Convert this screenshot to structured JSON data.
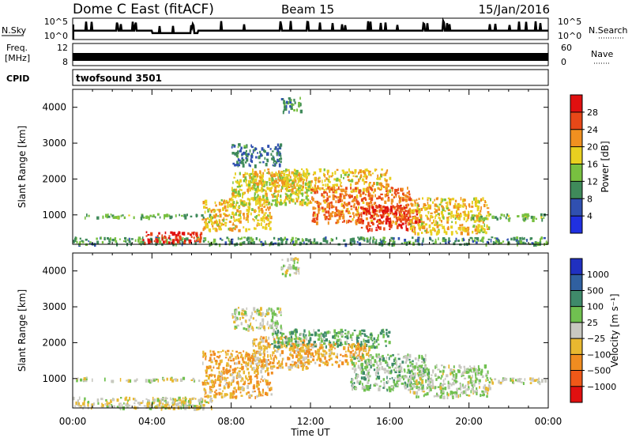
{
  "title": {
    "station": "Dome C East (fitACF)",
    "beam": "Beam 15",
    "date": "15/Jan/2016"
  },
  "header_panels": {
    "nsky_label": "N.Sky",
    "nsky_ticks": [
      "10^5",
      "10^0"
    ],
    "nsearch_label": "N.Search",
    "nsearch_ticks": [
      "10^5",
      "10^0"
    ],
    "freq_label": "Freq.",
    "freq_unit": "[MHz]",
    "freq_ticks": [
      "12",
      "8"
    ],
    "nave_label": "Nave",
    "nave_ticks": [
      "60",
      "0"
    ],
    "cpid_label": "CPID",
    "cpid_value": "twofsound 3501"
  },
  "axes": {
    "xlabel": "Time UT",
    "x_ticks": [
      "00:00",
      "04:00",
      "08:00",
      "12:00",
      "16:00",
      "20:00",
      "00:00"
    ],
    "ylabel": "Slant Range [km]",
    "y_ticks": [
      "1000",
      "2000",
      "3000",
      "4000"
    ]
  },
  "colorbars": {
    "power": {
      "label": "Power [dB]",
      "ticks": [
        "28",
        "24",
        "20",
        "16",
        "12",
        "8",
        "4"
      ],
      "colors": [
        "#2030e0",
        "#3050b0",
        "#3f8a5a",
        "#78c040",
        "#e8d020",
        "#f09020",
        "#e84818",
        "#e01010"
      ]
    },
    "velocity": {
      "label": "Velocity [m s⁻¹]",
      "ticks": [
        "1000",
        "500",
        "100",
        "25",
        "−25",
        "−100",
        "−500",
        "−1000"
      ],
      "colors": [
        "#2030c0",
        "#3060a0",
        "#3f8a6a",
        "#70c050",
        "#c8c8c0",
        "#e8b830",
        "#f08c20",
        "#f05818",
        "#e01010"
      ]
    }
  },
  "chart_data": [
    {
      "type": "line",
      "title": "N.Sky / N.Search",
      "x_range": [
        "00:00",
        "24:00"
      ],
      "ylim": [
        "10^0",
        "10^5"
      ],
      "y_scale": "log",
      "series": [
        {
          "name": "N.Sky",
          "x": [
            0,
            2,
            4,
            5,
            6,
            8,
            10,
            12,
            14,
            16,
            18,
            20,
            22,
            24
          ],
          "values": [
            0.45,
            0.4,
            0.3,
            0.28,
            0.4,
            0.45,
            0.45,
            0.45,
            0.45,
            0.45,
            0.45,
            0.45,
            0.45,
            0.45
          ]
        },
        {
          "name": "N.Search",
          "x": [
            0,
            12,
            24
          ],
          "values": [
            0.4,
            0.4,
            0.4
          ]
        }
      ]
    },
    {
      "type": "line",
      "title": "Freq. / Nave",
      "x_range": [
        "00:00",
        "24:00"
      ],
      "series": [
        {
          "name": "Freq.",
          "x": [
            0,
            24
          ],
          "values": [
            10.5,
            10.5
          ]
        },
        {
          "name": "Nave",
          "x": [
            0,
            24
          ],
          "values": [
            18,
            18
          ]
        }
      ],
      "ylim_freq": [
        8,
        12
      ],
      "ylim_nave": [
        0,
        60
      ]
    },
    {
      "type": "heatmap",
      "title": "Power [dB]",
      "xlabel": "Time UT",
      "ylabel": "Slant Range [km]",
      "xlim": [
        0,
        24
      ],
      "ylim": [
        180,
        4500
      ],
      "zlim": [
        0,
        30
      ],
      "regions": [
        {
          "t": [
            0,
            7
          ],
          "r": [
            950,
            1050
          ],
          "value": 12
        },
        {
          "t": [
            0,
            24
          ],
          "r": [
            200,
            400
          ],
          "value": 10
        },
        {
          "t": [
            3.5,
            6.5
          ],
          "r": [
            250,
            550
          ],
          "value": 26
        },
        {
          "t": [
            6.5,
            10
          ],
          "r": [
            600,
            1500
          ],
          "value": 18
        },
        {
          "t": [
            8,
            12
          ],
          "r": [
            1300,
            2200
          ],
          "value": 16
        },
        {
          "t": [
            9,
            16
          ],
          "r": [
            1700,
            2300
          ],
          "value": 18
        },
        {
          "t": [
            12,
            17
          ],
          "r": [
            800,
            1800
          ],
          "value": 22
        },
        {
          "t": [
            14.5,
            17.5
          ],
          "r": [
            600,
            1300
          ],
          "value": 26
        },
        {
          "t": [
            17,
            21
          ],
          "r": [
            500,
            1500
          ],
          "value": 18
        },
        {
          "t": [
            20,
            24
          ],
          "r": [
            900,
            1050
          ],
          "value": 12
        },
        {
          "t": [
            10.5,
            11.5
          ],
          "r": [
            3900,
            4300
          ],
          "value": 10
        },
        {
          "t": [
            8,
            10.5
          ],
          "r": [
            2400,
            3000
          ],
          "value": 8
        }
      ]
    },
    {
      "type": "heatmap",
      "title": "Velocity [m s⁻¹]",
      "xlabel": "Time UT",
      "ylabel": "Slant Range [km]",
      "xlim": [
        0,
        24
      ],
      "ylim": [
        180,
        4500
      ],
      "zlim": [
        -1000,
        1000
      ],
      "regions": [
        {
          "t": [
            0,
            7
          ],
          "r": [
            950,
            1050
          ],
          "value": 0
        },
        {
          "t": [
            0,
            7
          ],
          "r": [
            200,
            500
          ],
          "value": -50
        },
        {
          "t": [
            3.5,
            6.5
          ],
          "r": [
            200,
            500
          ],
          "value": 0
        },
        {
          "t": [
            6.5,
            10
          ],
          "r": [
            500,
            1800
          ],
          "value": -300
        },
        {
          "t": [
            9,
            12
          ],
          "r": [
            1300,
            2200
          ],
          "value": -200
        },
        {
          "t": [
            10,
            16
          ],
          "r": [
            1900,
            2400
          ],
          "value": 300
        },
        {
          "t": [
            11,
            15
          ],
          "r": [
            1400,
            2000
          ],
          "value": -250
        },
        {
          "t": [
            14,
            18
          ],
          "r": [
            700,
            1700
          ],
          "value": 200
        },
        {
          "t": [
            17,
            21
          ],
          "r": [
            500,
            1400
          ],
          "value": 80
        },
        {
          "t": [
            20,
            24
          ],
          "r": [
            900,
            1050
          ],
          "value": 0
        },
        {
          "t": [
            8,
            10.5
          ],
          "r": [
            2400,
            3000
          ],
          "value": 0
        },
        {
          "t": [
            10.5,
            11.5
          ],
          "r": [
            3900,
            4400
          ],
          "value": 0
        }
      ]
    }
  ]
}
